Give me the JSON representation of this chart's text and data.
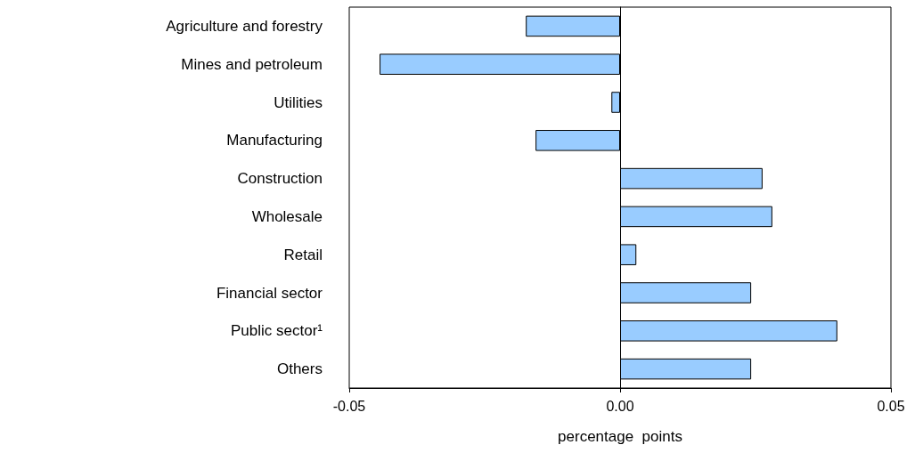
{
  "chart_data": {
    "type": "bar",
    "orientation": "horizontal",
    "xlabel": "percentage  points",
    "categories": [
      "Agriculture and forestry",
      "Mines and petroleum",
      "Utilities",
      "Manufacturing",
      "Construction",
      "Wholesale",
      "Retail",
      "Financial sector",
      "Public sector¹",
      "Others"
    ],
    "values": [
      -0.0174,
      -0.0444,
      -0.0016,
      -0.0156,
      0.0263,
      0.0281,
      0.003,
      0.0242,
      0.0401,
      0.0242
    ],
    "color": "#99ccff",
    "xlim": [
      -0.05,
      0.05
    ],
    "xticks": [
      -0.05,
      {
        "value": 0,
        "label": "0.00"
      },
      0.05
    ]
  }
}
